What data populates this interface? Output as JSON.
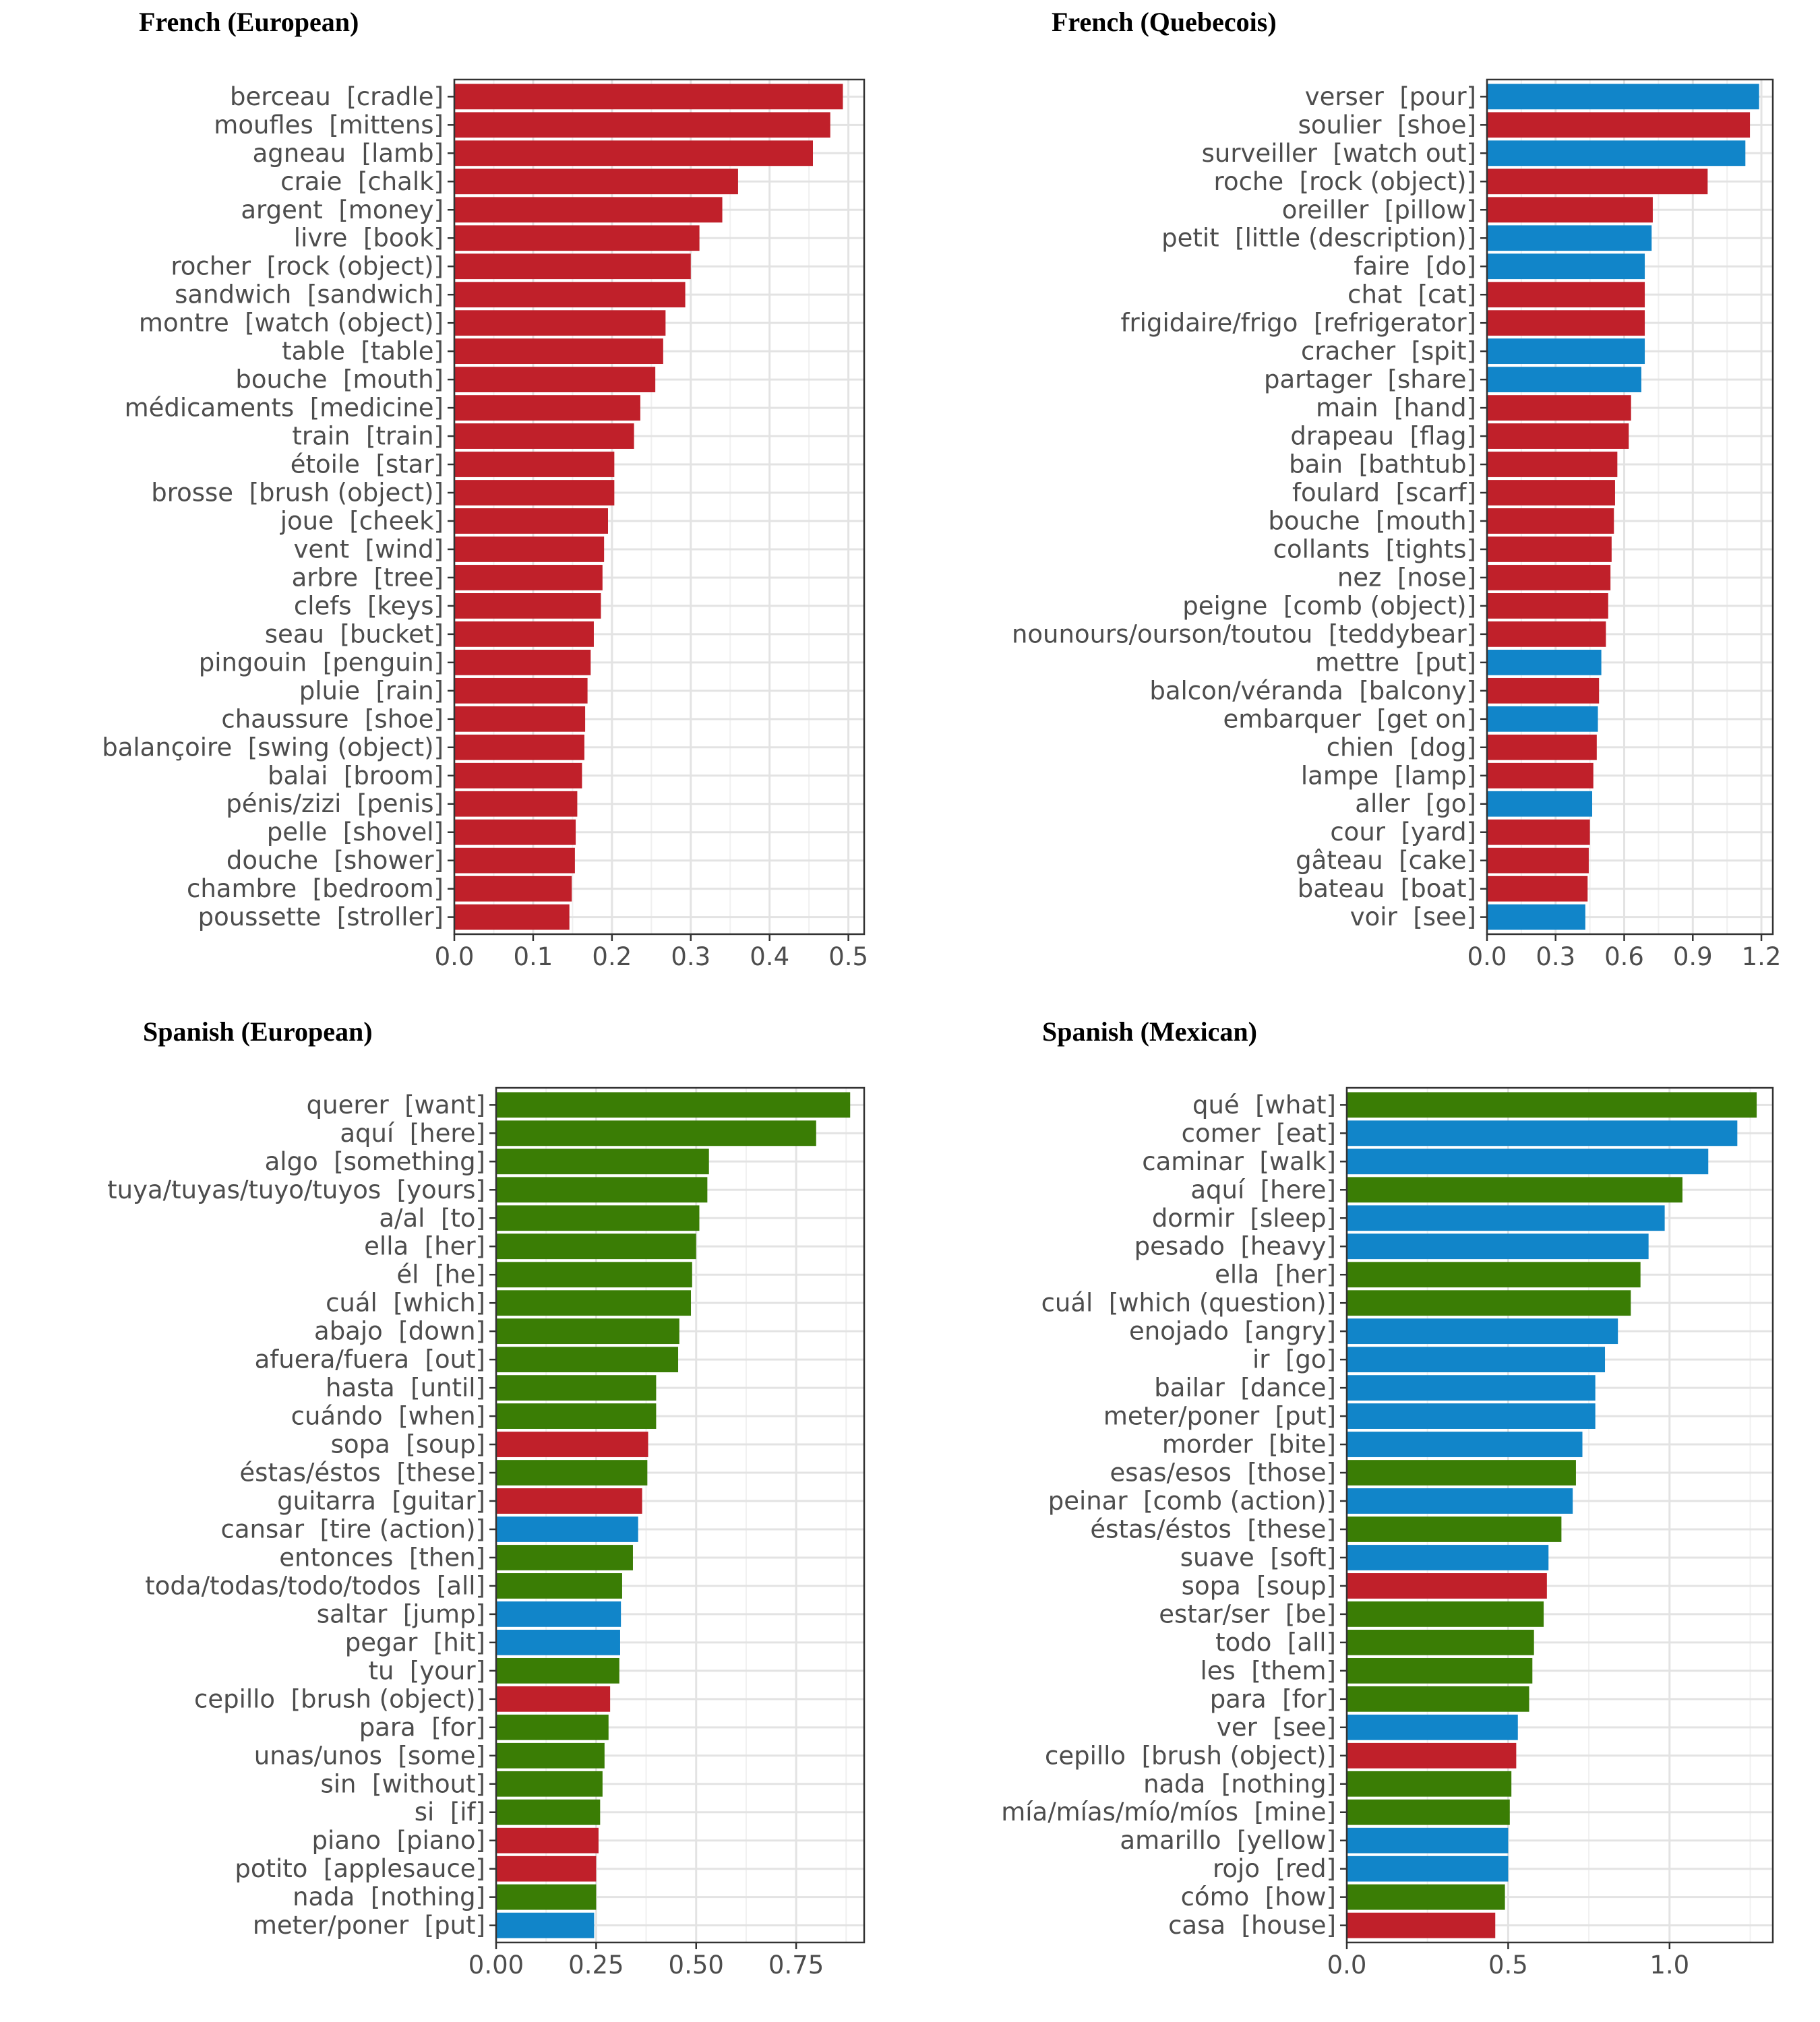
{
  "figure": {
    "colors": {
      "red": "#c0202a",
      "green": "#3a7d05",
      "blue": "#1185c9"
    },
    "color_legend_printed": false
  },
  "chart_data": [
    {
      "type": "bar",
      "orientation": "horizontal",
      "title": "French (European)",
      "xlabel": "",
      "ylabel": "",
      "xlim": [
        0,
        0.52
      ],
      "x_ticks": [
        "0.0",
        "0.1",
        "0.2",
        "0.3",
        "0.4",
        "0.5"
      ],
      "x_tick_values": [
        0,
        0.1,
        0.2,
        0.3,
        0.4,
        0.5
      ],
      "grid": true,
      "categories": [
        "berceau  [cradle]",
        "moufles  [mittens]",
        "agneau  [lamb]",
        "craie  [chalk]",
        "argent  [money]",
        "livre  [book]",
        "rocher  [rock (object)]",
        "sandwich  [sandwich]",
        "montre  [watch (object)]",
        "table  [table]",
        "bouche  [mouth]",
        "médicaments  [medicine]",
        "train  [train]",
        "étoile  [star]",
        "brosse  [brush (object)]",
        "joue  [cheek]",
        "vent  [wind]",
        "arbre  [tree]",
        "clefs  [keys]",
        "seau  [bucket]",
        "pingouin  [penguin]",
        "pluie  [rain]",
        "chaussure  [shoe]",
        "balançoire  [swing (object)]",
        "balai  [broom]",
        "pénis/zizi  [penis]",
        "pelle  [shovel]",
        "douche  [shower]",
        "chambre  [bedroom]",
        "poussette  [stroller]"
      ],
      "values": [
        0.493,
        0.477,
        0.455,
        0.36,
        0.34,
        0.311,
        0.3,
        0.293,
        0.268,
        0.265,
        0.255,
        0.236,
        0.228,
        0.203,
        0.203,
        0.195,
        0.19,
        0.188,
        0.186,
        0.177,
        0.173,
        0.169,
        0.166,
        0.165,
        0.162,
        0.156,
        0.154,
        0.153,
        0.149,
        0.146
      ],
      "bar_colors": [
        "red",
        "red",
        "red",
        "red",
        "red",
        "red",
        "red",
        "red",
        "red",
        "red",
        "red",
        "red",
        "red",
        "red",
        "red",
        "red",
        "red",
        "red",
        "red",
        "red",
        "red",
        "red",
        "red",
        "red",
        "red",
        "red",
        "red",
        "red",
        "red",
        "red"
      ]
    },
    {
      "type": "bar",
      "orientation": "horizontal",
      "title": "French (Quebecois)",
      "xlabel": "",
      "ylabel": "",
      "xlim": [
        0,
        1.25
      ],
      "x_ticks": [
        "0.0",
        "0.3",
        "0.6",
        "0.9",
        "1.2"
      ],
      "x_tick_values": [
        0,
        0.3,
        0.6,
        0.9,
        1.2
      ],
      "grid": true,
      "categories": [
        "verser  [pour]",
        "soulier  [shoe]",
        "surveiller  [watch out]",
        "roche  [rock (object)]",
        "oreiller  [pillow]",
        "petit  [little (description)]",
        "faire  [do]",
        "chat  [cat]",
        "frigidaire/frigo  [refrigerator]",
        "cracher  [spit]",
        "partager  [share]",
        "main  [hand]",
        "drapeau  [flag]",
        "bain  [bathtub]",
        "foulard  [scarf]",
        "bouche  [mouth]",
        "collants  [tights]",
        "nez  [nose]",
        "peigne  [comb (object)]",
        "nounours/ourson/toutou  [teddybear]",
        "mettre  [put]",
        "balcon/véranda  [balcony]",
        "embarquer  [get on]",
        "chien  [dog]",
        "lampe  [lamp]",
        "aller  [go]",
        "cour  [yard]",
        "gâteau  [cake]",
        "bateau  [boat]",
        "voir  [see]"
      ],
      "values": [
        1.19,
        1.15,
        1.13,
        0.965,
        0.725,
        0.72,
        0.69,
        0.69,
        0.69,
        0.69,
        0.675,
        0.63,
        0.62,
        0.57,
        0.56,
        0.555,
        0.545,
        0.54,
        0.53,
        0.52,
        0.5,
        0.49,
        0.485,
        0.48,
        0.465,
        0.46,
        0.45,
        0.445,
        0.44,
        0.43
      ],
      "bar_colors": [
        "blue",
        "red",
        "blue",
        "red",
        "red",
        "blue",
        "blue",
        "red",
        "red",
        "blue",
        "blue",
        "red",
        "red",
        "red",
        "red",
        "red",
        "red",
        "red",
        "red",
        "red",
        "blue",
        "red",
        "blue",
        "red",
        "red",
        "blue",
        "red",
        "red",
        "red",
        "blue"
      ]
    },
    {
      "type": "bar",
      "orientation": "horizontal",
      "title": "Spanish (European)",
      "xlabel": "",
      "ylabel": "",
      "xlim": [
        0,
        0.92
      ],
      "x_ticks": [
        "0.00",
        "0.25",
        "0.50",
        "0.75"
      ],
      "x_tick_values": [
        0,
        0.25,
        0.5,
        0.75
      ],
      "grid": true,
      "categories": [
        "querer  [want]",
        "aquí  [here]",
        "algo  [something]",
        "tuya/tuyas/tuyo/tuyos  [yours]",
        "a/al  [to]",
        "ella  [her]",
        "él  [he]",
        "cuál  [which]",
        "abajo  [down]",
        "afuera/fuera  [out]",
        "hasta  [until]",
        "cuándo  [when]",
        "sopa  [soup]",
        "éstas/éstos  [these]",
        "guitarra  [guitar]",
        "cansar  [tire (action)]",
        "entonces  [then]",
        "toda/todas/todo/todos  [all]",
        "saltar  [jump]",
        "pegar  [hit]",
        "tu  [your]",
        "cepillo  [brush (object)]",
        "para  [for]",
        "unas/unos  [some]",
        "sin  [without]",
        "si  [if]",
        "piano  [piano]",
        "potito  [applesauce]",
        "nada  [nothing]",
        "meter/poner  [put]"
      ],
      "values": [
        0.885,
        0.8,
        0.532,
        0.528,
        0.508,
        0.5,
        0.49,
        0.487,
        0.458,
        0.455,
        0.4,
        0.4,
        0.38,
        0.378,
        0.365,
        0.355,
        0.342,
        0.315,
        0.312,
        0.31,
        0.308,
        0.285,
        0.281,
        0.271,
        0.266,
        0.26,
        0.256,
        0.25,
        0.25,
        0.245
      ],
      "bar_colors": [
        "green",
        "green",
        "green",
        "green",
        "green",
        "green",
        "green",
        "green",
        "green",
        "green",
        "green",
        "green",
        "red",
        "green",
        "red",
        "blue",
        "green",
        "green",
        "blue",
        "blue",
        "green",
        "red",
        "green",
        "green",
        "green",
        "green",
        "red",
        "red",
        "green",
        "blue"
      ]
    },
    {
      "type": "bar",
      "orientation": "horizontal",
      "title": "Spanish (Mexican)",
      "xlabel": "",
      "ylabel": "",
      "xlim": [
        0,
        1.32
      ],
      "x_ticks": [
        "0.0",
        "0.5",
        "1.0"
      ],
      "x_tick_values": [
        0,
        0.5,
        1.0
      ],
      "grid": true,
      "categories": [
        "qué  [what]",
        "comer  [eat]",
        "caminar  [walk]",
        "aquí  [here]",
        "dormir  [sleep]",
        "pesado  [heavy]",
        "ella  [her]",
        "cuál  [which (question)]",
        "enojado  [angry]",
        "ir  [go]",
        "bailar  [dance]",
        "meter/poner  [put]",
        "morder  [bite]",
        "esas/esos  [those]",
        "peinar  [comb (action)]",
        "éstas/éstos  [these]",
        "suave  [soft]",
        "sopa  [soup]",
        "estar/ser  [be]",
        "todo  [all]",
        "les  [them]",
        "para  [for]",
        "ver  [see]",
        "cepillo  [brush (object)]",
        "nada  [nothing]",
        "mía/mías/mío/míos  [mine]",
        "amarillo  [yellow]",
        "rojo  [red]",
        "cómo  [how]",
        "casa  [house]"
      ],
      "values": [
        1.27,
        1.21,
        1.12,
        1.04,
        0.985,
        0.935,
        0.91,
        0.88,
        0.84,
        0.8,
        0.77,
        0.77,
        0.73,
        0.71,
        0.7,
        0.665,
        0.625,
        0.62,
        0.61,
        0.58,
        0.575,
        0.565,
        0.53,
        0.525,
        0.51,
        0.505,
        0.5,
        0.5,
        0.49,
        0.46
      ],
      "bar_colors": [
        "green",
        "blue",
        "blue",
        "green",
        "blue",
        "blue",
        "green",
        "green",
        "blue",
        "blue",
        "blue",
        "blue",
        "blue",
        "green",
        "blue",
        "green",
        "blue",
        "red",
        "green",
        "green",
        "green",
        "green",
        "blue",
        "red",
        "green",
        "green",
        "blue",
        "blue",
        "green",
        "red"
      ]
    }
  ]
}
